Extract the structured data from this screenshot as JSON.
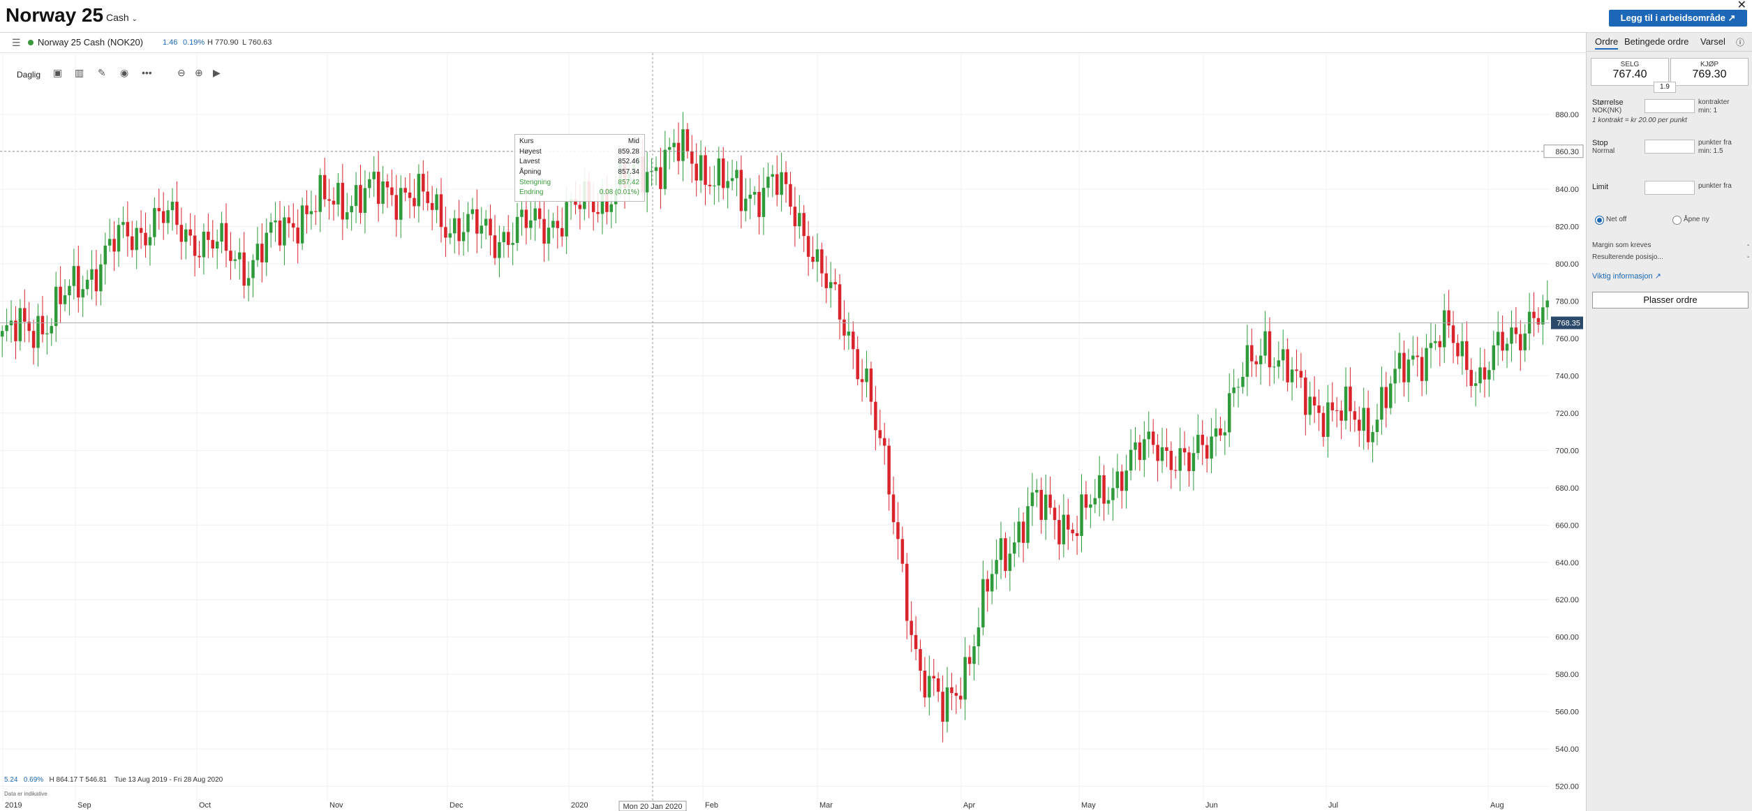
{
  "header": {
    "title": "Norway 25",
    "account_type": "Cash",
    "workspace_button": "Legg til i arbeidsområde ↗"
  },
  "instrument": {
    "name": "Norway 25 Cash (NOK20)",
    "change": "1.46",
    "change_pct": "0.19%",
    "high": "H 770.90",
    "low": "L 760.63"
  },
  "toolbar": {
    "period": "Daglig"
  },
  "tooltip": {
    "title": "Kurs",
    "mode": "Mid",
    "rows": [
      {
        "k": "Høyest",
        "v": "859.28"
      },
      {
        "k": "Lavest",
        "v": "852.46"
      },
      {
        "k": "Åpning",
        "v": "857.34"
      },
      {
        "k": "Stengning",
        "v": "857.42"
      },
      {
        "k": "Endring",
        "v": "0.08 (0.01%)"
      }
    ]
  },
  "bottom": {
    "change": "5.24",
    "change_pct": "0.69%",
    "hl": "H 864.17   T 546.81",
    "range": "Tue 13 Aug 2019 - Fri 28 Aug 2020",
    "note": "Data er indikative"
  },
  "panel": {
    "tabs": [
      "Ordre",
      "Betingede ordre",
      "Varsel"
    ],
    "sell_label": "SELG",
    "sell_price": "767.40",
    "buy_label": "KJØP",
    "buy_price": "769.30",
    "spread": "1.9",
    "size_label": "Størrelse",
    "size_currency": "NOK(NK)",
    "size_unit": "kontrakter",
    "size_min": "min: 1",
    "contract_note": "1 kontrakt = kr 20.00 per punkt",
    "stop_label": "Stop",
    "stop_type": "Normal",
    "stop_unit": "punkter fra",
    "stop_min": "min: 1.5",
    "limit_label": "Limit",
    "limit_unit": "punkter fra",
    "net_off": "Net off",
    "open_new": "Åpne ny",
    "margin_label": "Margin som kreves",
    "margin_value": "-",
    "resulting_label": "Resulterende posisjo...",
    "resulting_value": "-",
    "important_link": "Viktig informasjon",
    "place_button": "Plasser ordre"
  },
  "chart_data": {
    "type": "candlestick",
    "title": "Norway 25",
    "xlabel": "",
    "ylabel": "",
    "ylim": [
      512,
      892
    ],
    "y_ticks": [
      520,
      540,
      560,
      580,
      600,
      620,
      640,
      660,
      680,
      700,
      720,
      740,
      760,
      780,
      800,
      820,
      840,
      860,
      880
    ],
    "x_tick_labels": [
      "2019",
      "Sep",
      "Oct",
      "Nov",
      "Dec",
      "2020",
      "Feb",
      "Mar",
      "Apr",
      "May",
      "Jun",
      "Jul",
      "Aug"
    ],
    "crosshair_x_label": "Mon 20 Jan 2020",
    "crosshair_y_label": "860.30",
    "last_price_label": "768.35",
    "last_price": 768.35,
    "anchor_closes": [
      [
        0,
        760
      ],
      [
        10,
        770
      ],
      [
        25,
        810
      ],
      [
        35,
        825
      ],
      [
        45,
        812
      ],
      [
        55,
        800
      ],
      [
        65,
        825
      ],
      [
        75,
        835
      ],
      [
        90,
        840
      ],
      [
        100,
        822
      ],
      [
        110,
        815
      ],
      [
        125,
        825
      ],
      [
        137,
        840
      ],
      [
        150,
        860
      ],
      [
        158,
        850
      ],
      [
        165,
        835
      ],
      [
        172,
        845
      ],
      [
        180,
        815
      ],
      [
        187,
        770
      ],
      [
        193,
        740
      ],
      [
        200,
        650
      ],
      [
        205,
        580
      ],
      [
        210,
        560
      ],
      [
        216,
        590
      ],
      [
        222,
        640
      ],
      [
        230,
        670
      ],
      [
        240,
        660
      ],
      [
        250,
        690
      ],
      [
        258,
        705
      ],
      [
        265,
        690
      ],
      [
        273,
        720
      ],
      [
        282,
        760
      ],
      [
        290,
        730
      ],
      [
        297,
        720
      ],
      [
        305,
        715
      ],
      [
        315,
        750
      ],
      [
        322,
        762
      ],
      [
        330,
        740
      ],
      [
        337,
        760
      ],
      [
        342,
        775
      ],
      [
        345,
        768
      ]
    ],
    "n_days": 346
  }
}
